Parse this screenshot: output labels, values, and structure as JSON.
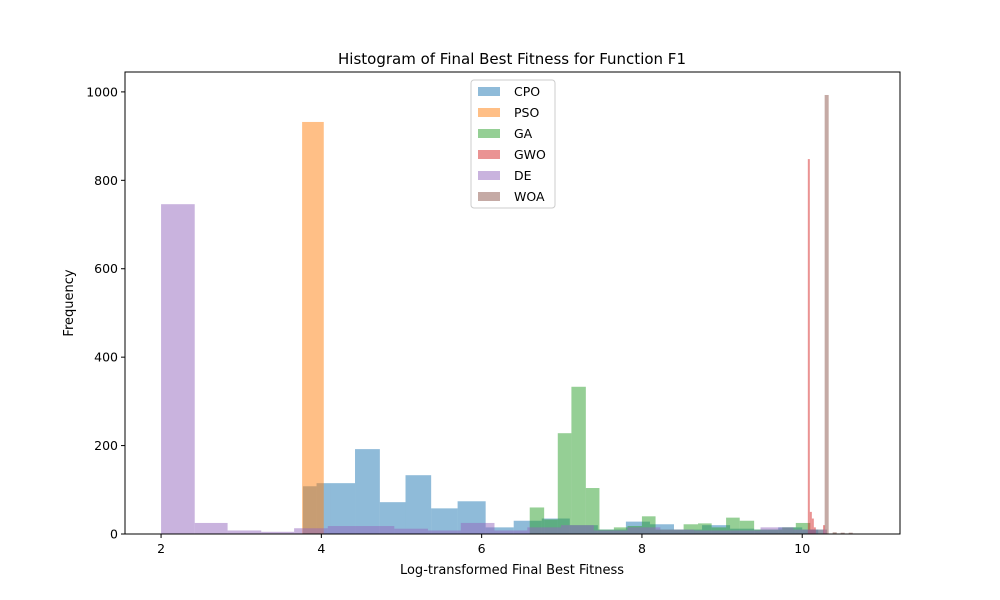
{
  "chart_data": {
    "type": "histogram",
    "title": "Histogram of Final Best Fitness for Function F1",
    "xlabel": "Log-transformed Final Best Fitness",
    "ylabel": "Frequency",
    "xlim": [
      1.55,
      11.22
    ],
    "ylim": [
      0,
      1045
    ],
    "xticks": [
      2,
      4,
      6,
      8,
      10
    ],
    "yticks": [
      0,
      200,
      400,
      600,
      800,
      1000
    ],
    "grid": false,
    "legend_position": "top-center",
    "series": [
      {
        "name": "CPO",
        "color": "#1f77b4",
        "bins": [
          [
            3.77,
            3.94,
            108
          ],
          [
            3.94,
            4.12,
            115
          ],
          [
            4.12,
            4.42,
            115
          ],
          [
            4.42,
            4.73,
            192
          ],
          [
            4.73,
            5.05,
            72
          ],
          [
            5.05,
            5.37,
            133
          ],
          [
            5.37,
            5.7,
            58
          ],
          [
            5.7,
            6.05,
            74
          ],
          [
            6.05,
            6.4,
            15
          ],
          [
            6.4,
            6.75,
            30
          ],
          [
            6.75,
            7.1,
            35
          ],
          [
            7.1,
            7.45,
            20
          ],
          [
            7.45,
            7.8,
            10
          ],
          [
            7.8,
            8.1,
            28
          ],
          [
            8.1,
            8.4,
            22
          ],
          [
            8.4,
            8.75,
            10
          ],
          [
            8.75,
            9.1,
            20
          ],
          [
            9.1,
            9.4,
            12
          ],
          [
            9.4,
            9.7,
            10
          ],
          [
            9.7,
            10.0,
            15
          ],
          [
            10.0,
            10.2,
            10
          ]
        ]
      },
      {
        "name": "PSO",
        "color": "#ff7f0e",
        "bins": [
          [
            3.76,
            4.03,
            932
          ]
        ]
      },
      {
        "name": "GA",
        "color": "#2ca02c",
        "bins": [
          [
            6.6,
            6.78,
            60
          ],
          [
            6.78,
            6.95,
            33
          ],
          [
            6.95,
            7.12,
            228
          ],
          [
            7.12,
            7.3,
            333
          ],
          [
            7.3,
            7.47,
            104
          ],
          [
            7.47,
            7.65,
            10
          ],
          [
            7.65,
            7.82,
            15
          ],
          [
            7.82,
            8.0,
            18
          ],
          [
            8.0,
            8.17,
            40
          ],
          [
            8.17,
            8.35,
            10
          ],
          [
            8.35,
            8.52,
            10
          ],
          [
            8.52,
            8.7,
            22
          ],
          [
            8.7,
            8.87,
            24
          ],
          [
            8.87,
            9.05,
            15
          ],
          [
            9.05,
            9.22,
            37
          ],
          [
            9.22,
            9.4,
            30
          ],
          [
            9.4,
            9.57,
            10
          ],
          [
            9.57,
            9.75,
            10
          ],
          [
            9.75,
            9.92,
            15
          ],
          [
            9.92,
            10.1,
            25
          ],
          [
            10.1,
            10.27,
            10
          ]
        ]
      },
      {
        "name": "GWO",
        "color": "#d62728",
        "bins": [
          [
            10.07,
            10.095,
            848
          ],
          [
            10.095,
            10.12,
            50
          ],
          [
            10.12,
            10.145,
            35
          ],
          [
            10.145,
            10.17,
            15
          ],
          [
            10.26,
            10.285,
            20
          ]
        ]
      },
      {
        "name": "DE",
        "color": "#9467bd",
        "bins": [
          [
            2.0,
            2.42,
            746
          ],
          [
            2.42,
            2.83,
            25
          ],
          [
            2.83,
            3.25,
            8
          ],
          [
            3.25,
            3.66,
            5
          ],
          [
            3.66,
            4.08,
            13
          ],
          [
            4.08,
            4.5,
            18
          ],
          [
            4.5,
            4.91,
            18
          ],
          [
            4.91,
            5.33,
            12
          ],
          [
            5.33,
            5.74,
            8
          ],
          [
            5.74,
            6.16,
            25
          ],
          [
            6.16,
            6.57,
            8
          ],
          [
            6.57,
            6.99,
            15
          ],
          [
            6.99,
            7.4,
            20
          ],
          [
            7.4,
            7.82,
            8
          ],
          [
            7.82,
            8.23,
            15
          ],
          [
            8.23,
            8.65,
            10
          ],
          [
            8.65,
            9.06,
            8
          ],
          [
            9.06,
            9.48,
            8
          ],
          [
            9.48,
            9.89,
            15
          ],
          [
            9.89,
            10.31,
            10
          ]
        ]
      },
      {
        "name": "WOA",
        "color": "#8c564b",
        "bins": [
          [
            10.28,
            10.33,
            993
          ],
          [
            10.38,
            10.43,
            4
          ],
          [
            10.48,
            10.53,
            3
          ],
          [
            10.58,
            10.63,
            3
          ]
        ]
      }
    ]
  }
}
